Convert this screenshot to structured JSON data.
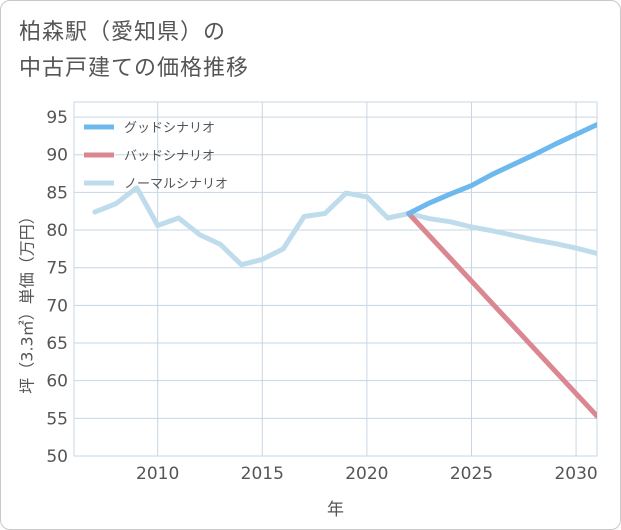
{
  "title_lines": [
    "柏森駅（愛知県）の",
    "中古戸建ての価格推移"
  ],
  "colors": {
    "good": "#6db8ec",
    "bad": "#db8791",
    "normal": "#bfdced",
    "grid": "#c6d6e4",
    "text": "#555555"
  },
  "chart_data": {
    "type": "line",
    "title": "柏森駅（愛知県）の中古戸建ての価格推移",
    "xlabel": "年",
    "ylabel": "坪（3.3㎡）単価（万円）",
    "xlim": [
      2006,
      2031
    ],
    "ylim": [
      50,
      97
    ],
    "xticks": [
      2010,
      2015,
      2020,
      2025,
      2030
    ],
    "yticks": [
      50,
      55,
      60,
      65,
      70,
      75,
      80,
      85,
      90,
      95
    ],
    "grid": true,
    "legend_position": "top-left",
    "series": [
      {
        "key": "good",
        "name": "グッドシナリオ",
        "x": [
          2022,
          2023,
          2024,
          2025,
          2026,
          2027,
          2028,
          2029,
          2030,
          2031
        ],
        "y": [
          82.2,
          83.6,
          84.8,
          85.9,
          87.4,
          88.7,
          90.0,
          91.4,
          92.7,
          94.0
        ]
      },
      {
        "key": "bad",
        "name": "バッドシナリオ",
        "x": [
          2022,
          2031
        ],
        "y": [
          82.2,
          55.3
        ]
      },
      {
        "key": "normal",
        "name": "ノーマルシナリオ",
        "x": [
          2007,
          2008,
          2009,
          2010,
          2011,
          2012,
          2013,
          2014,
          2015,
          2016,
          2017,
          2018,
          2019,
          2020,
          2021,
          2022,
          2023,
          2024,
          2025,
          2026,
          2027,
          2028,
          2029,
          2030,
          2031
        ],
        "y": [
          82.4,
          83.5,
          85.6,
          80.6,
          81.6,
          79.4,
          78.1,
          75.4,
          76.1,
          77.5,
          81.8,
          82.2,
          84.9,
          84.4,
          81.6,
          82.2,
          81.5,
          81.1,
          80.4,
          79.9,
          79.3,
          78.7,
          78.2,
          77.6,
          76.9
        ]
      }
    ]
  }
}
